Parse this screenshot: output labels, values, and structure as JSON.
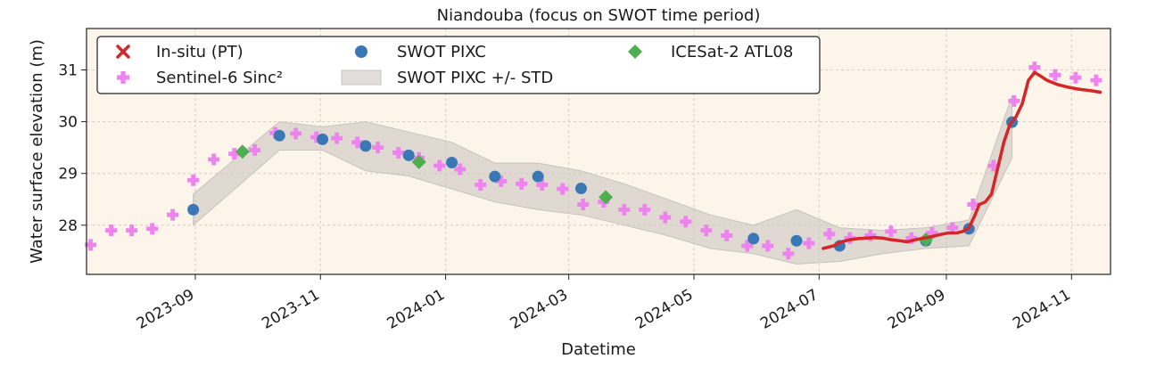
{
  "chart_data": {
    "type": "line",
    "title": "Niandouba (focus on SWOT time period)",
    "xlabel": "Datetime",
    "ylabel": "Water surface elevation (m)",
    "xlim": [
      "2023-07-10",
      "2024-11-20"
    ],
    "ylim": [
      27.05,
      31.8
    ],
    "x_ticks": [
      "2023-09",
      "2023-11",
      "2024-01",
      "2024-03",
      "2024-05",
      "2024-07",
      "2024-09",
      "2024-11"
    ],
    "x_tick_dates": [
      "2023-09-01",
      "2023-11-01",
      "2024-01-01",
      "2024-03-01",
      "2024-05-01",
      "2024-07-01",
      "2024-09-01",
      "2024-11-01"
    ],
    "y_ticks": [
      28,
      29,
      30,
      31
    ],
    "grid": true,
    "legend_position": "upper-left",
    "colors": {
      "background": "#fdf4ea",
      "insitu": "#d62728",
      "sentinel": "#ee82ee",
      "swot": "#3a78b5",
      "band": "#c8c3bd",
      "icesat": "#4fae4f"
    },
    "legend": [
      {
        "label": "In-situ (PT)",
        "marker": "x"
      },
      {
        "label": "SWOT PIXC",
        "marker": "circle"
      },
      {
        "label": "ICESat-2 ATL08",
        "marker": "diamond"
      },
      {
        "label": "Sentinel-6 Sinc²",
        "marker": "plus"
      },
      {
        "label": "SWOT PIXC +/- STD",
        "marker": "band"
      }
    ],
    "series": [
      {
        "name": "In-situ (PT)",
        "kind": "line",
        "x": [
          "2024-07-03",
          "2024-07-08",
          "2024-07-12",
          "2024-07-16",
          "2024-07-20",
          "2024-07-24",
          "2024-07-28",
          "2024-08-01",
          "2024-08-05",
          "2024-08-09",
          "2024-08-13",
          "2024-08-17",
          "2024-08-21",
          "2024-08-25",
          "2024-08-29",
          "2024-09-02",
          "2024-09-06",
          "2024-09-09",
          "2024-09-12",
          "2024-09-15",
          "2024-09-17",
          "2024-09-20",
          "2024-09-23",
          "2024-09-26",
          "2024-09-29",
          "2024-10-02",
          "2024-10-05",
          "2024-10-08",
          "2024-10-11",
          "2024-10-14",
          "2024-10-17",
          "2024-10-20",
          "2024-10-25",
          "2024-10-30",
          "2024-11-04",
          "2024-11-10",
          "2024-11-15"
        ],
        "y": [
          27.55,
          27.6,
          27.68,
          27.72,
          27.74,
          27.75,
          27.76,
          27.75,
          27.72,
          27.7,
          27.68,
          27.72,
          27.75,
          27.78,
          27.82,
          27.85,
          27.85,
          27.88,
          27.95,
          28.2,
          28.4,
          28.45,
          28.6,
          29.1,
          29.6,
          29.95,
          30.1,
          30.35,
          30.8,
          30.95,
          30.88,
          30.8,
          30.72,
          30.67,
          30.63,
          30.6,
          30.57
        ]
      },
      {
        "name": "Sentinel-6 Sinc²",
        "kind": "scatter",
        "x": [
          "2023-07-12",
          "2023-07-22",
          "2023-08-01",
          "2023-08-11",
          "2023-08-21",
          "2023-08-31",
          "2023-09-10",
          "2023-09-20",
          "2023-09-30",
          "2023-10-10",
          "2023-10-20",
          "2023-10-30",
          "2023-11-09",
          "2023-11-19",
          "2023-11-29",
          "2023-12-09",
          "2023-12-19",
          "2023-12-29",
          "2024-01-08",
          "2024-01-18",
          "2024-01-28",
          "2024-02-07",
          "2024-02-17",
          "2024-02-27",
          "2024-03-08",
          "2024-03-18",
          "2024-03-28",
          "2024-04-07",
          "2024-04-17",
          "2024-04-27",
          "2024-05-07",
          "2024-05-17",
          "2024-05-27",
          "2024-06-06",
          "2024-06-16",
          "2024-06-26",
          "2024-07-06",
          "2024-07-16",
          "2024-07-26",
          "2024-08-05",
          "2024-08-15",
          "2024-08-25",
          "2024-09-04",
          "2024-09-14",
          "2024-09-24",
          "2024-10-04",
          "2024-10-14",
          "2024-10-24",
          "2024-11-03",
          "2024-11-13"
        ],
        "y": [
          27.62,
          27.9,
          27.9,
          27.93,
          28.2,
          28.87,
          29.27,
          29.38,
          29.45,
          29.78,
          29.77,
          29.7,
          29.68,
          29.6,
          29.5,
          29.4,
          29.3,
          29.15,
          29.08,
          28.78,
          28.85,
          28.8,
          28.78,
          28.7,
          28.4,
          28.45,
          28.3,
          28.3,
          28.15,
          28.07,
          27.9,
          27.8,
          27.6,
          27.6,
          27.45,
          27.65,
          27.83,
          27.75,
          27.8,
          27.88,
          27.75,
          27.85,
          27.95,
          28.4,
          29.15,
          30.4,
          31.05,
          30.9,
          30.85,
          30.8
        ]
      },
      {
        "name": "SWOT PIXC",
        "kind": "scatter",
        "x": [
          "2023-08-31",
          "2023-10-12",
          "2023-11-02",
          "2023-11-23",
          "2023-12-14",
          "2024-01-04",
          "2024-01-25",
          "2024-02-15",
          "2024-03-07",
          "2024-05-30",
          "2024-06-20",
          "2024-07-11",
          "2024-08-22",
          "2024-09-12",
          "2024-10-03"
        ],
        "y": [
          28.3,
          29.73,
          29.66,
          29.53,
          29.35,
          29.21,
          28.94,
          28.94,
          28.71,
          27.74,
          27.7,
          27.6,
          27.7,
          27.93,
          29.99
        ]
      },
      {
        "name": "SWOT PIXC +/- STD",
        "kind": "band",
        "x": [
          "2023-08-31",
          "2023-10-12",
          "2023-11-02",
          "2023-11-23",
          "2023-12-14",
          "2024-01-04",
          "2024-01-25",
          "2024-02-15",
          "2024-03-07",
          "2024-03-28",
          "2024-04-18",
          "2024-05-09",
          "2024-05-30",
          "2024-06-20",
          "2024-07-11",
          "2024-08-01",
          "2024-08-22",
          "2024-09-12",
          "2024-10-03"
        ],
        "lower": [
          28.0,
          29.45,
          29.45,
          29.05,
          28.95,
          28.7,
          28.45,
          28.3,
          28.2,
          28.0,
          27.8,
          27.55,
          27.45,
          27.25,
          27.3,
          27.45,
          27.55,
          27.6,
          29.3
        ],
        "upper": [
          28.6,
          30.0,
          29.9,
          30.0,
          29.8,
          29.6,
          29.2,
          29.2,
          29.05,
          28.8,
          28.5,
          28.2,
          28.0,
          28.3,
          27.95,
          27.9,
          27.95,
          28.1,
          30.5
        ]
      },
      {
        "name": "ICESat-2 ATL08",
        "kind": "scatter",
        "x": [
          "2023-09-24",
          "2023-12-19",
          "2024-03-19",
          "2024-08-22"
        ],
        "y": [
          29.42,
          29.22,
          28.54,
          27.72
        ]
      }
    ]
  }
}
